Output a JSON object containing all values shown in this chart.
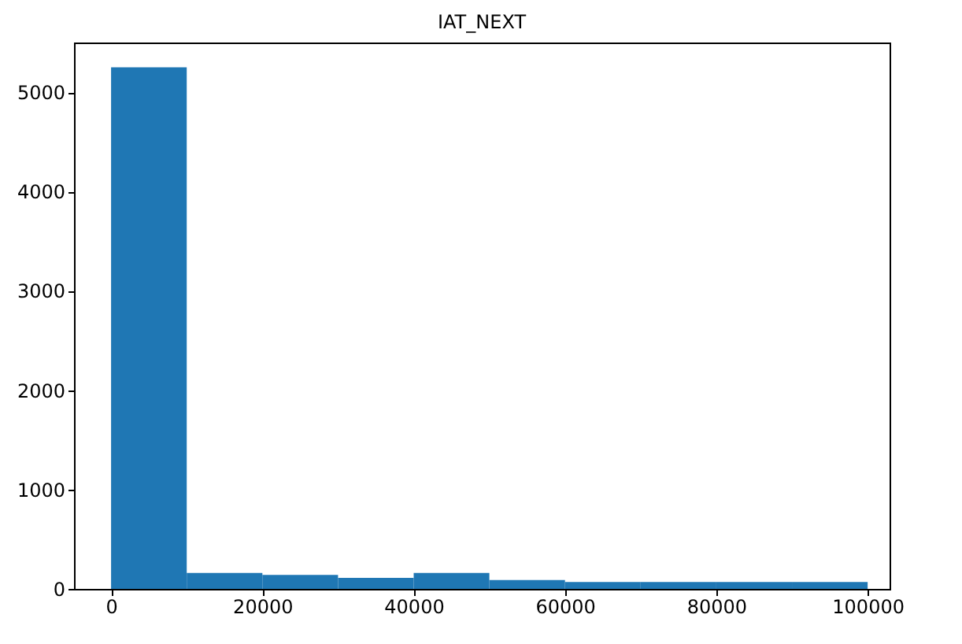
{
  "chart_data": {
    "type": "histogram",
    "title": "IAT_NEXT",
    "bins": [
      0,
      10000,
      20000,
      30000,
      40000,
      50000,
      60000,
      70000,
      80000,
      90000,
      100000
    ],
    "values": [
      5250,
      160,
      140,
      110,
      160,
      90,
      70,
      70,
      70,
      70
    ],
    "color": "#1f77b4",
    "xlim": [
      -4900,
      102900
    ],
    "xticks": [
      0,
      20000,
      40000,
      60000,
      80000,
      100000
    ],
    "ylim": [
      0,
      5500
    ],
    "yticks": [
      0,
      1000,
      2000,
      3000,
      4000,
      5000
    ],
    "grid": false
  }
}
